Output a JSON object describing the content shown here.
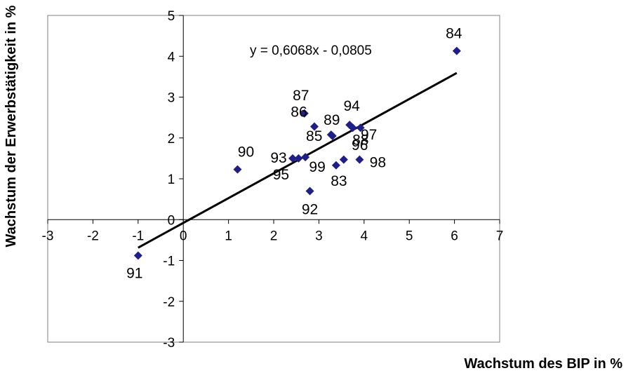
{
  "chart_data": {
    "type": "scatter",
    "xlabel": "Wachstum des BIP in %",
    "ylabel": "Wachstum der Erwerbstätigkeit in %",
    "xlim": [
      -3,
      7
    ],
    "ylim": [
      -3,
      5
    ],
    "x_ticks": [
      "-3",
      "-2",
      "-1",
      "0",
      "1",
      "2",
      "3",
      "4",
      "5",
      "6",
      "7"
    ],
    "y_ticks": [
      "-3",
      "-2",
      "-1",
      "0",
      "1",
      "2",
      "3",
      "4",
      "5"
    ],
    "marker_color": "#1f1f8c",
    "line_color": "#000000",
    "points": [
      {
        "label": "83",
        "x": 3.38,
        "y": 1.33
      },
      {
        "label": "84",
        "x": 6.05,
        "y": 4.13
      },
      {
        "label": "85",
        "x": 3.3,
        "y": 2.05
      },
      {
        "label": "86",
        "x": 2.9,
        "y": 2.28
      },
      {
        "label": "87",
        "x": 2.68,
        "y": 2.6
      },
      {
        "label": "88",
        "x": 3.55,
        "y": 1.47
      },
      {
        "label": "89",
        "x": 3.27,
        "y": 2.08
      },
      {
        "label": "90",
        "x": 1.2,
        "y": 1.23
      },
      {
        "label": "91",
        "x": -1.0,
        "y": -0.88
      },
      {
        "label": "92",
        "x": 2.8,
        "y": 0.7
      },
      {
        "label": "93",
        "x": 2.42,
        "y": 1.5
      },
      {
        "label": "94",
        "x": 3.68,
        "y": 2.32
      },
      {
        "label": "95",
        "x": 2.55,
        "y": 1.5
      },
      {
        "label": "96",
        "x": 3.75,
        "y": 2.25
      },
      {
        "label": "97",
        "x": 3.92,
        "y": 2.25
      },
      {
        "label": "98",
        "x": 3.9,
        "y": 1.47
      },
      {
        "label": "99",
        "x": 2.7,
        "y": 1.53
      }
    ],
    "trendline": {
      "equation": "y = 0,6068x - 0,0805",
      "slope": 0.6068,
      "intercept": -0.0805,
      "x_range": [
        -1.0,
        6.05
      ]
    }
  }
}
